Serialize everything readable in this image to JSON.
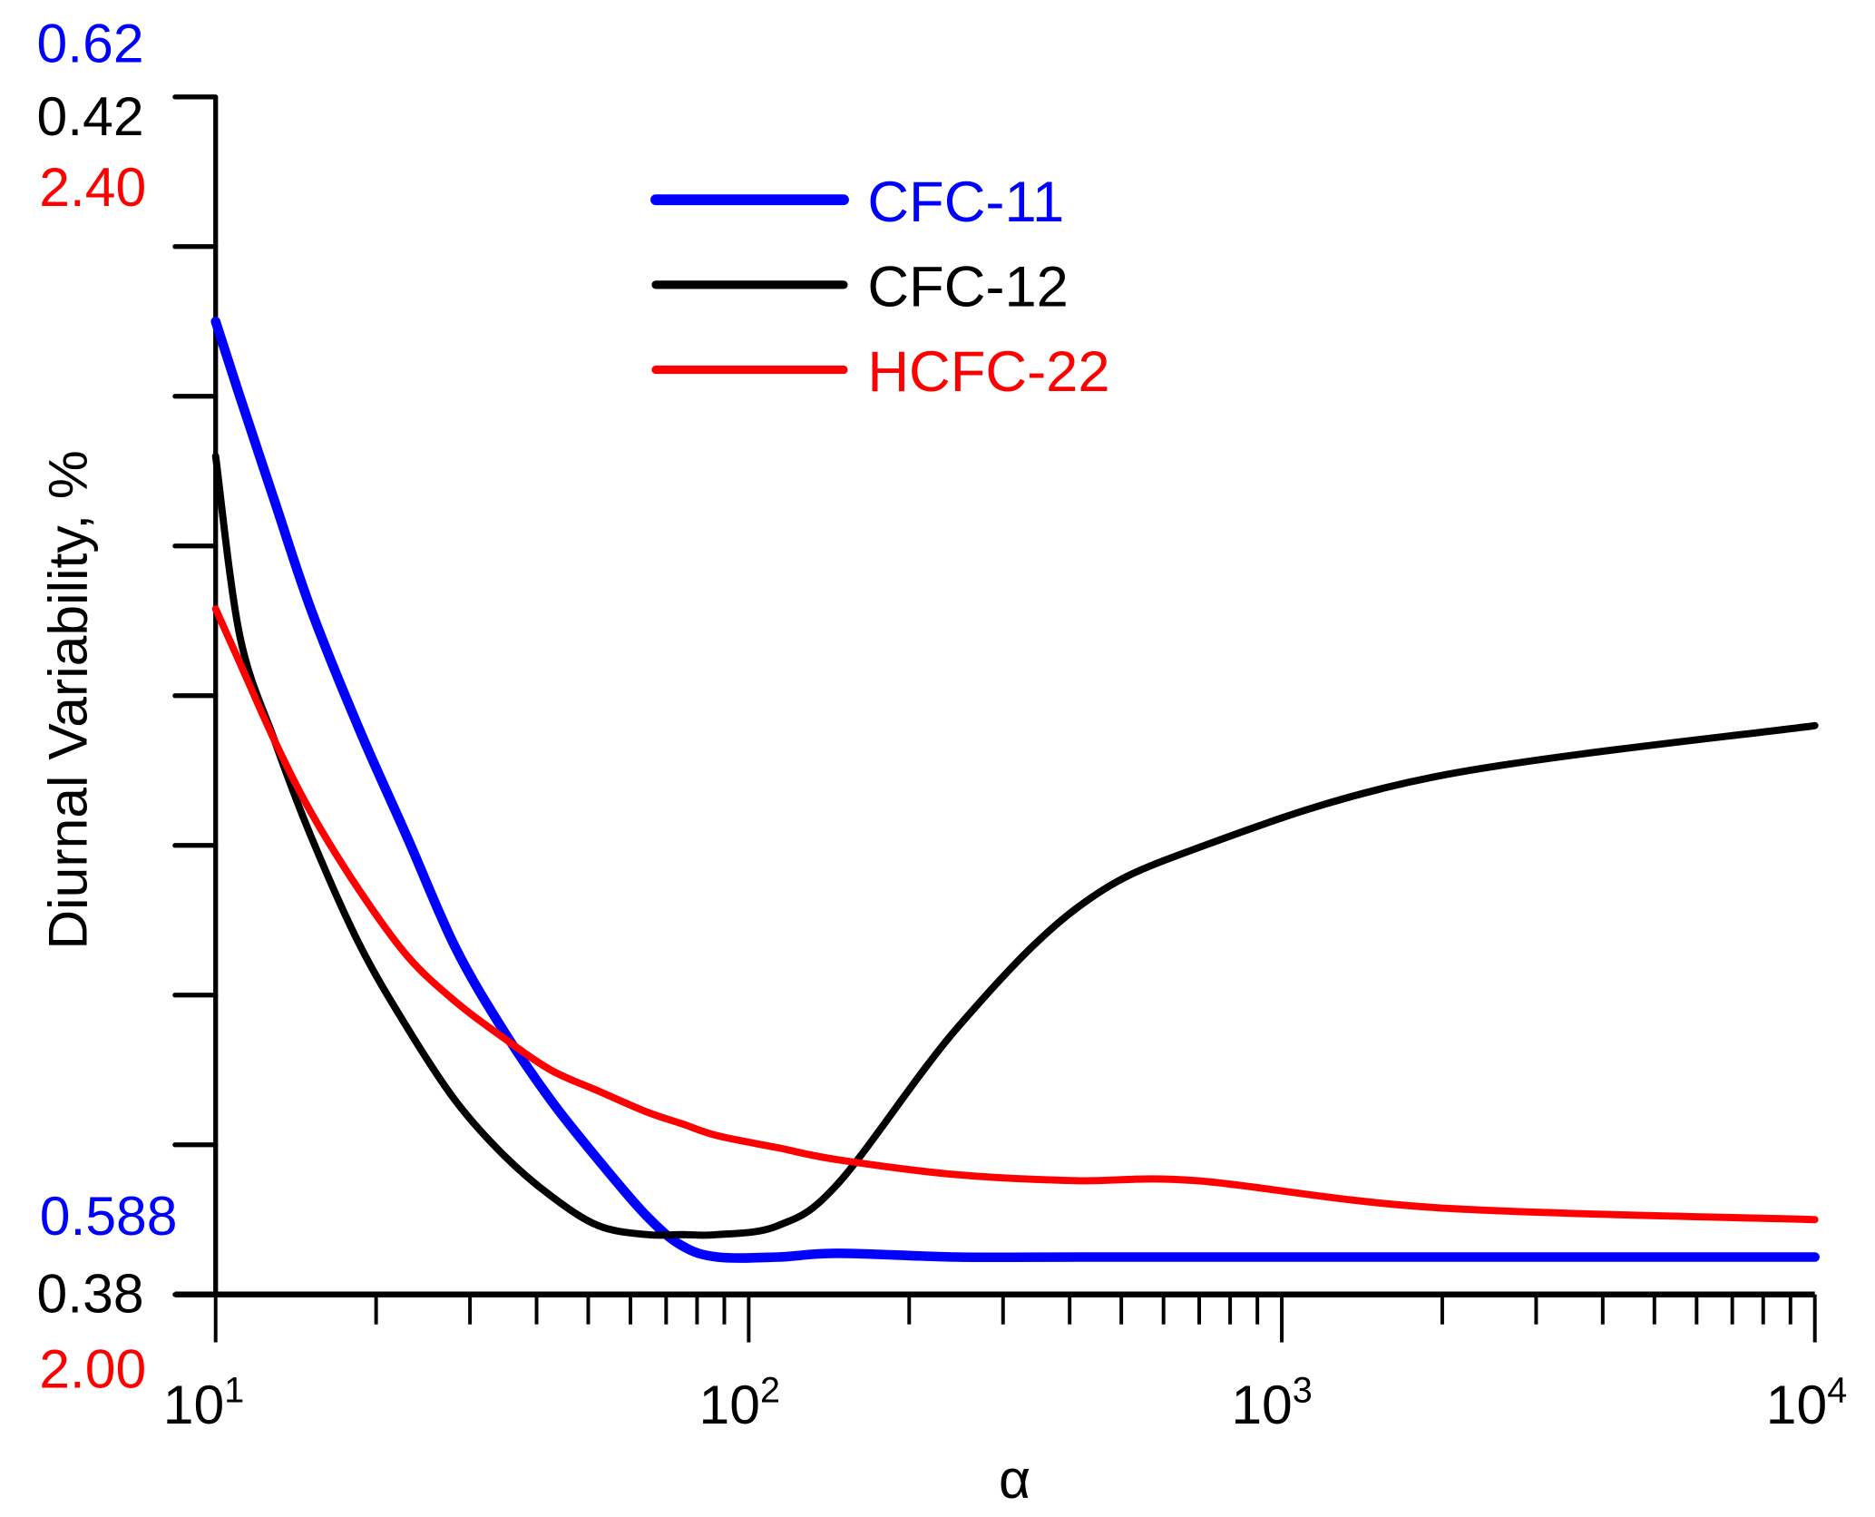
{
  "chart_data": {
    "type": "line",
    "title": "",
    "xlabel": "α",
    "ylabel": "Diurnal Variability, %",
    "xscale": "log",
    "xlim": [
      10,
      10000
    ],
    "x_tick_labels": [
      {
        "base": "10",
        "exp": "1"
      },
      {
        "base": "10",
        "exp": "2"
      },
      {
        "base": "10",
        "exp": "3"
      },
      {
        "base": "10",
        "exp": "4"
      }
    ],
    "y_axes": [
      {
        "series": "CFC-11",
        "color": "#0000ff",
        "ylim": [
          0.588,
          0.62
        ],
        "bottom_label": "0.588",
        "top_label": "0.62"
      },
      {
        "series": "CFC-12",
        "color": "#000000",
        "ylim": [
          0.38,
          0.42
        ],
        "bottom_label": "0.38",
        "top_label": "0.42"
      },
      {
        "series": "HCFC-22",
        "color": "#ff0000",
        "ylim": [
          2.0,
          2.4
        ],
        "bottom_label": "2.00",
        "top_label": "2.40"
      }
    ],
    "legend_position": "top-center",
    "grid": false,
    "x": [
      10,
      11.1,
      12.9,
      15.1,
      18.6,
      22.9,
      28.1,
      34.5,
      42.5,
      52.2,
      64.3,
      75,
      87.5,
      113.5,
      147,
      246,
      412,
      692,
      1945,
      10000
    ],
    "series": [
      {
        "name": "CFC-11",
        "color": "#0000ff",
        "axis": 0,
        "values": [
          0.614,
          0.612,
          0.6092,
          0.6063,
          0.6031,
          0.6002,
          0.5973,
          0.5951,
          0.5932,
          0.5916,
          0.5901,
          0.5893,
          0.589,
          0.589,
          0.5891,
          0.589,
          0.589,
          0.589,
          0.589,
          0.589
        ]
      },
      {
        "name": "CFC-12",
        "color": "#000000",
        "axis": 1,
        "values": [
          0.408,
          0.402,
          0.3985,
          0.3953,
          0.3917,
          0.3889,
          0.3865,
          0.3847,
          0.3833,
          0.3823,
          0.382,
          0.382,
          0.382,
          0.3823,
          0.3837,
          0.3889,
          0.3929,
          0.3949,
          0.3973,
          0.399
        ]
      },
      {
        "name": "HCFC-22",
        "color": "#ff0000",
        "axis": 2,
        "values": [
          2.229,
          2.211,
          2.185,
          2.161,
          2.135,
          2.113,
          2.098,
          2.086,
          2.075,
          2.068,
          2.061,
          2.057,
          2.053,
          2.049,
          2.045,
          2.04,
          2.038,
          2.038,
          2.029,
          2.025
        ]
      }
    ]
  }
}
